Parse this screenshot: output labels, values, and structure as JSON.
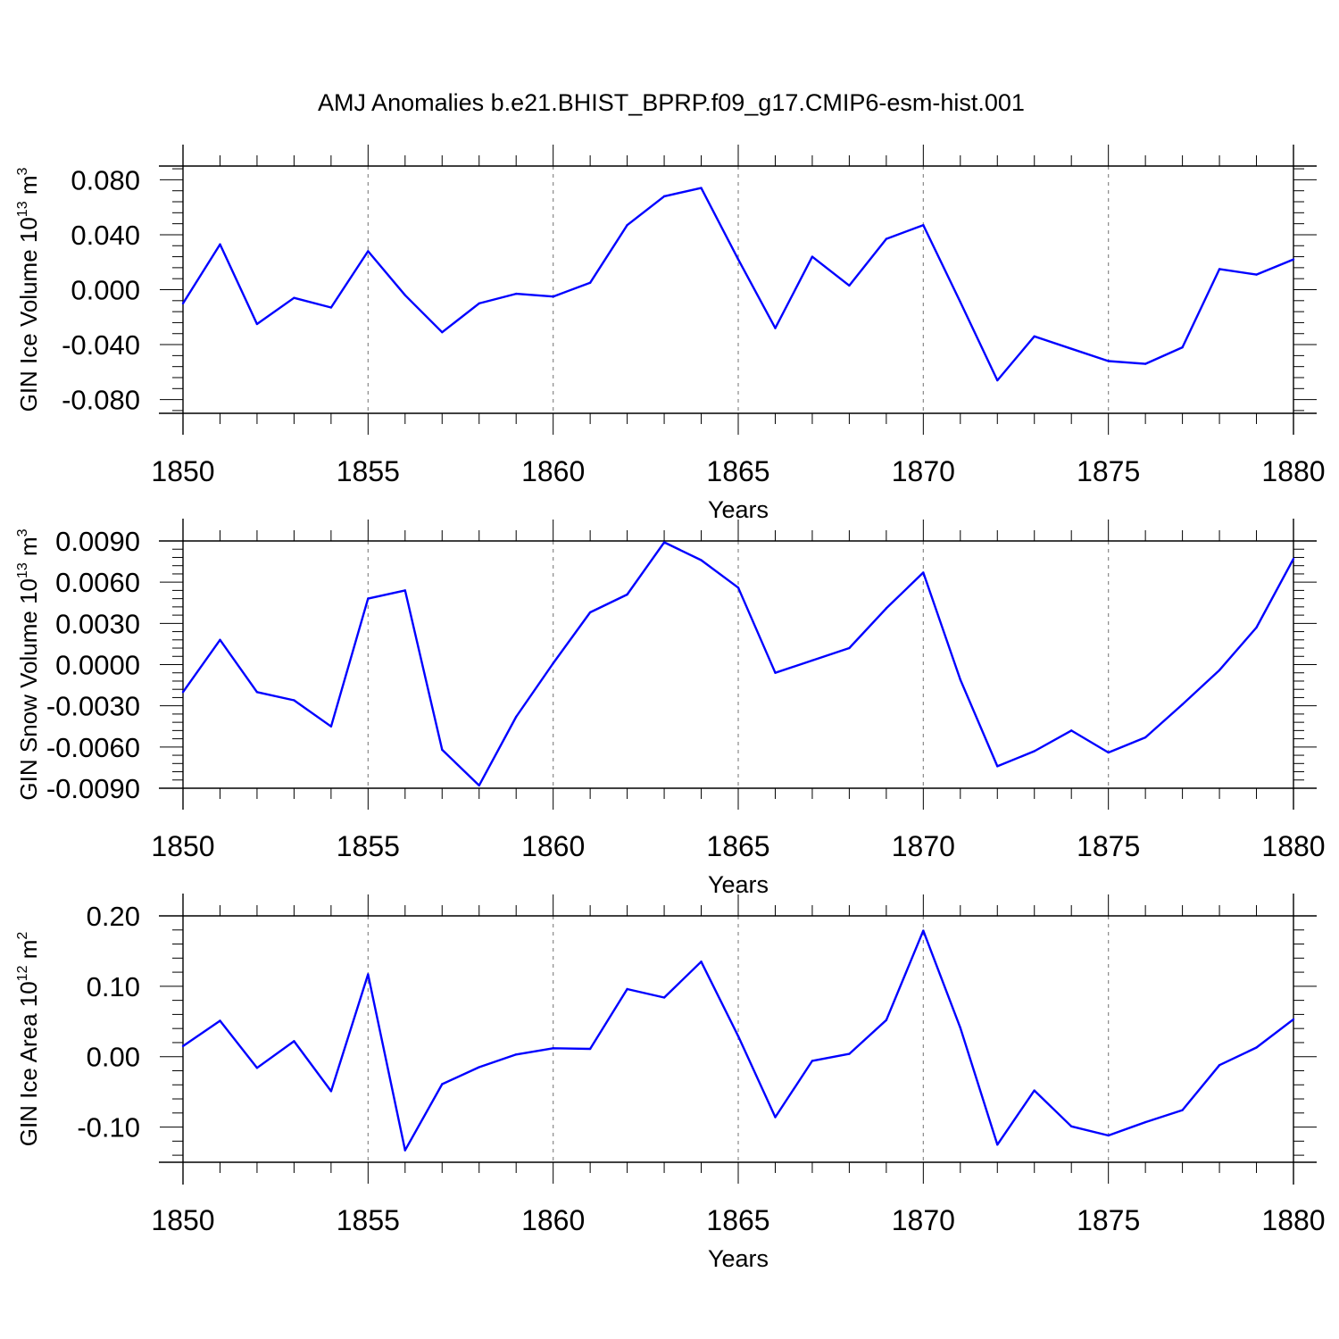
{
  "title": "AMJ Anomalies b.e21.BHIST_BPRP.f09_g17.CMIP6-esm-hist.001",
  "line_color": "#0000ff",
  "chart_data": [
    {
      "type": "line",
      "ylabel": "GIN Ice Volume 10",
      "ylabel_sup": "13",
      "ylabel_unit": "m",
      "ylabel_unit_sup": "3",
      "xlabel": "Years",
      "xlim": [
        1850,
        1880
      ],
      "ylim": [
        -0.09,
        0.09
      ],
      "yticks": [
        -0.08,
        -0.04,
        0.0,
        0.04,
        0.08
      ],
      "ytick_labels": [
        "-0.080",
        "-0.040",
        "0.000",
        "0.040",
        "0.080"
      ],
      "xticks": [
        1850,
        1855,
        1860,
        1865,
        1870,
        1875,
        1880
      ],
      "xtick_labels": [
        "1850",
        "1855",
        "1860",
        "1865",
        "1870",
        "1875",
        "1880"
      ],
      "x": [
        1850,
        1851,
        1852,
        1853,
        1854,
        1855,
        1856,
        1857,
        1858,
        1859,
        1860,
        1861,
        1862,
        1863,
        1864,
        1865,
        1866,
        1867,
        1868,
        1869,
        1870,
        1871,
        1872,
        1873,
        1874,
        1875,
        1876,
        1877,
        1878,
        1879,
        1880
      ],
      "values": [
        -0.01,
        0.033,
        -0.025,
        -0.006,
        -0.013,
        0.028,
        -0.004,
        -0.031,
        -0.01,
        -0.003,
        -0.005,
        0.005,
        0.047,
        0.068,
        0.074,
        0.022,
        -0.028,
        0.024,
        0.003,
        0.037,
        0.047,
        -0.009,
        -0.066,
        -0.034,
        -0.043,
        -0.052,
        -0.054,
        -0.042,
        0.015,
        0.011,
        0.022
      ]
    },
    {
      "type": "line",
      "ylabel": "GIN Snow Volume 10",
      "ylabel_sup": "13",
      "ylabel_unit": "m",
      "ylabel_unit_sup": "3",
      "xlabel": "Years",
      "xlim": [
        1850,
        1880
      ],
      "ylim": [
        -0.009,
        0.009
      ],
      "yticks": [
        -0.009,
        -0.006,
        -0.003,
        0.0,
        0.003,
        0.006,
        0.009
      ],
      "ytick_labels": [
        "-0.0090",
        "-0.0060",
        "-0.0030",
        "0.0000",
        "0.0030",
        "0.0060",
        "0.0090"
      ],
      "xticks": [
        1850,
        1855,
        1860,
        1865,
        1870,
        1875,
        1880
      ],
      "xtick_labels": [
        "1850",
        "1855",
        "1860",
        "1865",
        "1870",
        "1875",
        "1880"
      ],
      "x": [
        1850,
        1851,
        1852,
        1853,
        1854,
        1855,
        1856,
        1857,
        1858,
        1859,
        1860,
        1861,
        1862,
        1863,
        1864,
        1865,
        1866,
        1867,
        1868,
        1869,
        1870,
        1871,
        1872,
        1873,
        1874,
        1875,
        1876,
        1877,
        1878,
        1879,
        1880
      ],
      "values": [
        -0.002,
        0.0018,
        -0.002,
        -0.0026,
        -0.0045,
        0.0048,
        0.0054,
        -0.0062,
        -0.0088,
        -0.0038,
        0.0001,
        0.0038,
        0.0051,
        0.0089,
        0.0076,
        0.0056,
        -0.0006,
        0.0003,
        0.0012,
        0.0041,
        0.0067,
        -0.0011,
        -0.0074,
        -0.0063,
        -0.0048,
        -0.0064,
        -0.0053,
        -0.0029,
        -0.0004,
        0.0027,
        0.0077
      ]
    },
    {
      "type": "line",
      "ylabel": "GIN Ice Area 10",
      "ylabel_sup": "12",
      "ylabel_unit": "m",
      "ylabel_unit_sup": "2",
      "xlabel": "Years",
      "xlim": [
        1850,
        1880
      ],
      "ylim": [
        -0.15,
        0.2
      ],
      "yticks": [
        -0.1,
        0.0,
        0.1,
        0.2
      ],
      "ytick_labels": [
        "-0.10",
        "0.00",
        "0.10",
        "0.20"
      ],
      "xticks": [
        1850,
        1855,
        1860,
        1865,
        1870,
        1875,
        1880
      ],
      "xtick_labels": [
        "1850",
        "1855",
        "1860",
        "1865",
        "1870",
        "1875",
        "1880"
      ],
      "x": [
        1850,
        1851,
        1852,
        1853,
        1854,
        1855,
        1856,
        1857,
        1858,
        1859,
        1860,
        1861,
        1862,
        1863,
        1864,
        1865,
        1866,
        1867,
        1868,
        1869,
        1870,
        1871,
        1872,
        1873,
        1874,
        1875,
        1876,
        1877,
        1878,
        1879,
        1880
      ],
      "values": [
        0.015,
        0.051,
        -0.016,
        0.022,
        -0.049,
        0.117,
        -0.133,
        -0.039,
        -0.015,
        0.003,
        0.012,
        0.011,
        0.096,
        0.084,
        0.135,
        0.029,
        -0.086,
        -0.006,
        0.004,
        0.052,
        0.179,
        0.041,
        -0.125,
        -0.048,
        -0.099,
        -0.112,
        -0.093,
        -0.076,
        -0.012,
        0.013,
        0.053
      ]
    }
  ]
}
